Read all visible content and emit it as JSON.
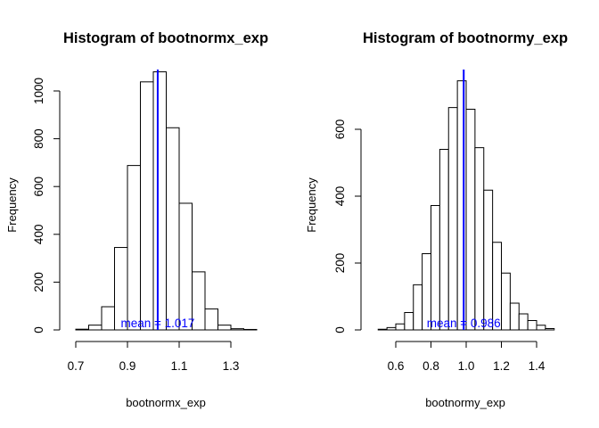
{
  "chart_data": [
    {
      "type": "bar",
      "title": "Histogram of bootnormx_exp",
      "xlabel": "bootnormx_exp",
      "ylabel": "Frequency",
      "xlim": [
        0.7,
        1.4
      ],
      "ylim": [
        0,
        1080
      ],
      "bin_edges": [
        0.7,
        0.75,
        0.8,
        0.85,
        0.9,
        0.95,
        1.0,
        1.05,
        1.1,
        1.15,
        1.2,
        1.25,
        1.3,
        1.35,
        1.4
      ],
      "values": [
        3,
        20,
        97,
        345,
        688,
        1038,
        1080,
        846,
        530,
        243,
        88,
        20,
        5,
        2
      ],
      "x_ticks": [
        0.7,
        0.9,
        1.1,
        1.3
      ],
      "x_tick_labels": [
        "0.7",
        "0.9",
        "1.1",
        "1.3"
      ],
      "y_ticks": [
        0,
        200,
        400,
        600,
        800,
        1000
      ],
      "y_tick_labels": [
        "0",
        "200",
        "400",
        "600",
        "800",
        "1000"
      ],
      "mean_line": {
        "value": 1.017,
        "color": "#0000ff"
      },
      "mean_label": "mean = 1.017",
      "grid": false,
      "legend": "none"
    },
    {
      "type": "bar",
      "title": "Histogram of bootnormy_exp",
      "xlabel": "bootnormy_exp",
      "ylabel": "Frequency",
      "xlim": [
        0.5,
        1.5
      ],
      "ylim": [
        0,
        745
      ],
      "bin_edges": [
        0.5,
        0.55,
        0.6,
        0.65,
        0.7,
        0.75,
        0.8,
        0.85,
        0.9,
        0.95,
        1.0,
        1.05,
        1.1,
        1.15,
        1.2,
        1.25,
        1.3,
        1.35,
        1.4,
        1.45,
        1.5
      ],
      "values": [
        2,
        7,
        18,
        52,
        135,
        228,
        372,
        540,
        665,
        745,
        660,
        545,
        418,
        262,
        170,
        80,
        48,
        28,
        14,
        4
      ],
      "x_ticks": [
        0.6,
        0.8,
        1.0,
        1.2,
        1.4
      ],
      "x_tick_labels": [
        "0.6",
        "0.8",
        "1.0",
        "1.2",
        "1.4"
      ],
      "y_ticks": [
        0,
        200,
        400,
        600
      ],
      "y_tick_labels": [
        "0",
        "200",
        "400",
        "600"
      ],
      "mean_line": {
        "value": 0.986,
        "color": "#0000ff"
      },
      "mean_label": "mean = 0.986",
      "grid": false,
      "legend": "none"
    }
  ]
}
